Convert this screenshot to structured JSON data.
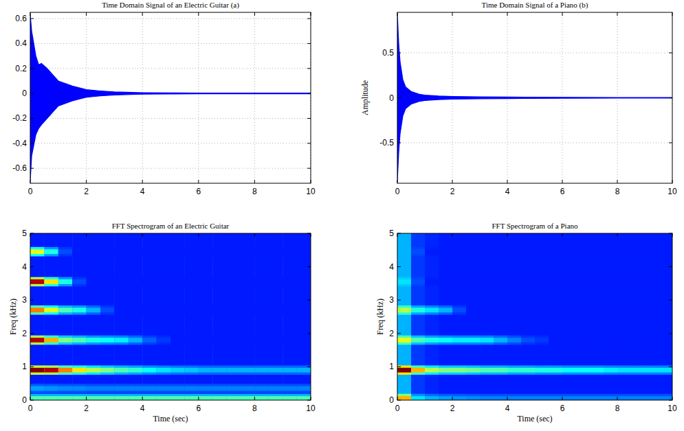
{
  "chart_data": [
    {
      "type": "envelope",
      "title": "Time Domain Signal of an Electric Guitar (a)",
      "x": [
        0,
        0.05,
        0.2,
        0.3,
        0.4,
        0.6,
        0.8,
        1.0,
        1.5,
        2,
        2.5,
        3,
        4,
        5,
        6,
        8,
        10
      ],
      "series": [
        {
          "color": "#0000ff",
          "values": [
            0.63,
            0.5,
            0.3,
            0.23,
            0.24,
            0.2,
            0.15,
            0.1,
            0.06,
            0.03,
            0.02,
            0.012,
            0.006,
            0.004,
            0.003,
            0.003,
            0.003
          ]
        },
        {
          "color": "#0000ff",
          "values": [
            -0.7,
            -0.5,
            -0.33,
            -0.28,
            -0.25,
            -0.2,
            -0.15,
            -0.1,
            -0.06,
            -0.03,
            -0.02,
            -0.012,
            -0.006,
            -0.004,
            -0.003,
            -0.003,
            -0.003
          ]
        }
      ],
      "xlim": [
        0,
        10
      ],
      "xticks": [
        0,
        2,
        4,
        6,
        8,
        10
      ],
      "ylim": [
        -0.72,
        0.65
      ],
      "yticks": [
        -0.6,
        -0.4,
        -0.2,
        0,
        0.2,
        0.4,
        0.6
      ],
      "grid": true
    },
    {
      "type": "envelope",
      "title": "Time Domain Signal of a Piano (b)",
      "y_label": "Amplitude",
      "x": [
        0,
        0.05,
        0.1,
        0.2,
        0.3,
        0.5,
        0.8,
        1,
        1.5,
        2,
        3,
        4,
        6,
        8,
        10
      ],
      "series": [
        {
          "color": "#0000ff",
          "values": [
            0.93,
            0.6,
            0.4,
            0.2,
            0.12,
            0.07,
            0.04,
            0.03,
            0.02,
            0.015,
            0.01,
            0.008,
            0.005,
            0.004,
            0.003
          ]
        },
        {
          "color": "#0000ff",
          "values": [
            -0.93,
            -0.6,
            -0.4,
            -0.2,
            -0.12,
            -0.07,
            -0.04,
            -0.03,
            -0.02,
            -0.015,
            -0.01,
            -0.008,
            -0.005,
            -0.004,
            -0.003
          ]
        }
      ],
      "xlim": [
        0,
        10
      ],
      "xticks": [
        0,
        2,
        4,
        6,
        8,
        10
      ],
      "ylim": [
        -0.95,
        0.95
      ],
      "yticks": [
        -0.5,
        0,
        0.5
      ],
      "grid": true
    },
    {
      "type": "heatmap",
      "title": "FFT Spectrogram of an Electric Guitar",
      "x_label": "Time (sec)",
      "y_label": "Freq (kHz)",
      "color": "jet",
      "color_range": [
        0,
        1
      ],
      "x": [
        0,
        0.5,
        1,
        1.5,
        2,
        2.5,
        3,
        3.5,
        4,
        4.5,
        5,
        5.5,
        6,
        6.5,
        7,
        7.5,
        8,
        8.5,
        9,
        9.5,
        10
      ],
      "background": [
        0.15,
        0.15,
        0.15,
        0.15,
        0.15,
        0.15,
        0.15,
        0.15,
        0.15,
        0.15,
        0.15,
        0.15,
        0.15,
        0.15,
        0.15,
        0.15,
        0.15,
        0.15,
        0.15,
        0.15
      ],
      "bands": [
        {
          "freq": 0.05,
          "values": [
            0.45,
            0.45,
            0.45,
            0.45,
            0.45,
            0.45,
            0.45,
            0.45,
            0.45,
            0.45,
            0.45,
            0.45,
            0.45,
            0.45,
            0.45,
            0.45,
            0.45,
            0.45,
            0.45,
            0.45
          ]
        },
        {
          "freq": 0.35,
          "values": [
            0.28,
            0.27,
            0.26,
            0.26,
            0.25,
            0.25,
            0.25,
            0.25,
            0.25,
            0.25,
            0.25,
            0.25,
            0.25,
            0.25,
            0.25,
            0.25,
            0.25,
            0.25,
            0.25,
            0.25
          ]
        },
        {
          "freq": 0.9,
          "values": [
            1.0,
            0.95,
            0.75,
            0.65,
            0.55,
            0.5,
            0.45,
            0.42,
            0.38,
            0.35,
            0.33,
            0.32,
            0.3,
            0.3,
            0.3,
            0.3,
            0.3,
            0.3,
            0.3,
            0.3
          ]
        },
        {
          "freq": 1.8,
          "values": [
            0.95,
            0.7,
            0.5,
            0.45,
            0.4,
            0.38,
            0.36,
            0.3,
            0.22,
            0.18,
            0.15,
            0.15,
            0.15,
            0.15,
            0.15,
            0.15,
            0.15,
            0.15,
            0.15,
            0.15
          ]
        },
        {
          "freq": 2.7,
          "values": [
            0.75,
            0.6,
            0.45,
            0.4,
            0.3,
            0.2,
            0.15,
            0.15,
            0.15,
            0.15,
            0.15,
            0.15,
            0.15,
            0.15,
            0.15,
            0.15,
            0.15,
            0.15,
            0.15,
            0.15
          ]
        },
        {
          "freq": 3.55,
          "values": [
            0.95,
            0.65,
            0.4,
            0.2,
            0.15,
            0.15,
            0.15,
            0.15,
            0.15,
            0.15,
            0.15,
            0.15,
            0.15,
            0.15,
            0.15,
            0.15,
            0.15,
            0.15,
            0.15,
            0.15
          ]
        },
        {
          "freq": 4.45,
          "values": [
            0.6,
            0.4,
            0.2,
            0.15,
            0.15,
            0.15,
            0.15,
            0.15,
            0.15,
            0.15,
            0.15,
            0.15,
            0.15,
            0.15,
            0.15,
            0.15,
            0.15,
            0.15,
            0.15,
            0.15
          ]
        }
      ],
      "xlim": [
        0,
        10
      ],
      "xticks": [
        0,
        2,
        4,
        6,
        8,
        10
      ],
      "ylim": [
        0,
        5
      ],
      "yticks": [
        0,
        1,
        2,
        3,
        4,
        5
      ]
    },
    {
      "type": "heatmap",
      "title": "FFT Spectrogram of a Piano",
      "x_label": "Time (sec)",
      "y_label": "Freq (kHz)",
      "color": "jet",
      "color_range": [
        0,
        1
      ],
      "x": [
        0,
        0.5,
        1,
        1.5,
        2,
        2.5,
        3,
        3.5,
        4,
        4.5,
        5,
        5.5,
        6,
        6.5,
        7,
        7.5,
        8,
        8.5,
        9,
        9.5,
        10
      ],
      "background": [
        0.3,
        0.18,
        0.16,
        0.15,
        0.15,
        0.15,
        0.15,
        0.15,
        0.15,
        0.15,
        0.15,
        0.15,
        0.15,
        0.15,
        0.15,
        0.15,
        0.15,
        0.15,
        0.15,
        0.15
      ],
      "bands": [
        {
          "freq": 0.05,
          "values": [
            0.7,
            0.35,
            0.3,
            0.28,
            0.27,
            0.26,
            0.25,
            0.25,
            0.25,
            0.25,
            0.25,
            0.25,
            0.25,
            0.25,
            0.25,
            0.25,
            0.25,
            0.25,
            0.25,
            0.25
          ]
        },
        {
          "freq": 0.9,
          "values": [
            1.0,
            0.7,
            0.55,
            0.5,
            0.5,
            0.48,
            0.45,
            0.45,
            0.42,
            0.42,
            0.4,
            0.4,
            0.38,
            0.38,
            0.38,
            0.36,
            0.35,
            0.35,
            0.35,
            0.35
          ]
        },
        {
          "freq": 1.8,
          "values": [
            0.6,
            0.45,
            0.4,
            0.38,
            0.36,
            0.36,
            0.35,
            0.3,
            0.25,
            0.2,
            0.18,
            0.15,
            0.15,
            0.15,
            0.15,
            0.15,
            0.15,
            0.15,
            0.15,
            0.15
          ]
        },
        {
          "freq": 2.7,
          "values": [
            0.55,
            0.4,
            0.35,
            0.3,
            0.2,
            0.15,
            0.15,
            0.15,
            0.15,
            0.15,
            0.15,
            0.15,
            0.15,
            0.15,
            0.15,
            0.15,
            0.15,
            0.15,
            0.15,
            0.15
          ]
        },
        {
          "freq": 3.55,
          "values": [
            0.35,
            0.2,
            0.15,
            0.15,
            0.15,
            0.15,
            0.15,
            0.15,
            0.15,
            0.15,
            0.15,
            0.15,
            0.15,
            0.15,
            0.15,
            0.15,
            0.15,
            0.15,
            0.15,
            0.15
          ]
        },
        {
          "freq": 4.45,
          "values": [
            0.3,
            0.2,
            0.15,
            0.15,
            0.15,
            0.15,
            0.15,
            0.15,
            0.15,
            0.15,
            0.15,
            0.15,
            0.15,
            0.15,
            0.15,
            0.15,
            0.15,
            0.15,
            0.15,
            0.15
          ]
        }
      ],
      "xlim": [
        0,
        10
      ],
      "xticks": [
        0,
        2,
        4,
        6,
        8,
        10
      ],
      "ylim": [
        0,
        5
      ],
      "yticks": [
        0,
        1,
        2,
        3,
        4,
        5
      ]
    }
  ]
}
